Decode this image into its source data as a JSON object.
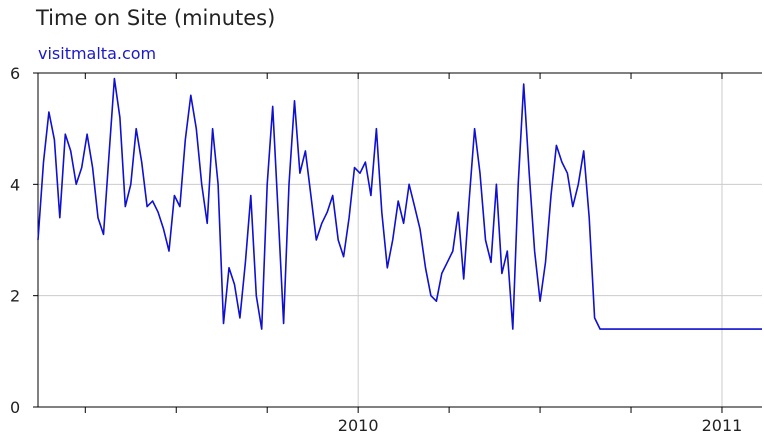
{
  "chart_data": {
    "type": "line",
    "title": "Time on Site (minutes)",
    "subtitle": "visitmalta.com",
    "xlabel": "",
    "ylabel": "",
    "ylim": [
      0,
      6
    ],
    "yticks": [
      "0",
      "2",
      "4",
      "6"
    ],
    "xticks": [
      {
        "label": "2010",
        "x": 2010.0
      },
      {
        "label": "2011",
        "x": 2011.0
      }
    ],
    "xlim": [
      2009.12,
      2011.11
    ],
    "grid": true,
    "line_color": "#1010d0",
    "series": [
      {
        "x": [
          2009.12,
          2009.135,
          2009.15,
          2009.165,
          2009.18,
          2009.195,
          2009.21,
          2009.225,
          2009.24,
          2009.255,
          2009.27,
          2009.285,
          2009.3,
          2009.315,
          2009.33,
          2009.345,
          2009.36,
          2009.375,
          2009.39,
          2009.405,
          2009.42,
          2009.435,
          2009.45,
          2009.465,
          2009.48,
          2009.495,
          2009.51,
          2009.525,
          2009.54,
          2009.555,
          2009.57,
          2009.585,
          2009.6,
          2009.615,
          2009.63,
          2009.645,
          2009.66,
          2009.675,
          2009.69,
          2009.705,
          2009.72,
          2009.735,
          2009.75,
          2009.765,
          2009.78,
          2009.795,
          2009.81,
          2009.825,
          2009.84,
          2009.855,
          2009.87,
          2009.885,
          2009.9,
          2009.915,
          2009.93,
          2009.945,
          2009.96,
          2009.975,
          2009.99,
          2010.005,
          2010.02,
          2010.035,
          2010.05,
          2010.065,
          2010.08,
          2010.095,
          2010.11,
          2010.125,
          2010.14,
          2010.155,
          2010.17,
          2010.185,
          2010.2,
          2010.215,
          2010.23,
          2010.245,
          2010.26,
          2010.275,
          2010.29,
          2010.305,
          2010.32,
          2010.335,
          2010.35,
          2010.365,
          2010.38,
          2010.395,
          2010.41,
          2010.425,
          2010.44,
          2010.455,
          2010.47,
          2010.485,
          2010.5,
          2010.515,
          2010.53,
          2010.545,
          2010.56,
          2010.575,
          2010.59,
          2010.605,
          2010.62,
          2010.635,
          2010.65,
          2010.665,
          2010.68,
          2010.695,
          2010.71,
          2010.725,
          2010.74,
          2010.755,
          2010.77,
          2010.785,
          2010.8,
          2010.815,
          2010.83,
          2010.845,
          2010.86,
          2010.875,
          2010.89,
          2010.905,
          2010.92,
          2010.935,
          2010.95,
          2010.965,
          2010.98,
          2010.995,
          2011.01,
          2011.025,
          2011.04,
          2011.055,
          2011.07,
          2011.085,
          2011.1,
          2011.11
        ],
        "values": [
          3.0,
          4.4,
          5.3,
          4.8,
          3.4,
          4.9,
          4.6,
          4.0,
          4.3,
          4.9,
          4.3,
          3.4,
          3.1,
          4.5,
          5.9,
          5.2,
          3.6,
          4.0,
          5.0,
          4.4,
          3.6,
          3.7,
          3.5,
          3.2,
          2.8,
          3.8,
          3.6,
          4.8,
          5.6,
          5.0,
          4.0,
          3.3,
          5.0,
          4.0,
          1.5,
          2.5,
          2.2,
          1.6,
          2.6,
          3.8,
          2.0,
          1.4,
          4.0,
          5.4,
          3.5,
          1.5,
          4.0,
          5.5,
          4.2,
          4.6,
          3.8,
          3.0,
          3.3,
          3.5,
          3.8,
          3.0,
          2.7,
          3.4,
          4.3,
          4.2,
          4.4,
          3.8,
          5.0,
          3.5,
          2.5,
          3.0,
          3.7,
          3.3,
          4.0,
          3.6,
          3.2,
          2.5,
          2.0,
          1.9,
          2.4,
          2.6,
          2.8,
          3.5,
          2.3,
          3.7,
          5.0,
          4.2,
          3.0,
          2.6,
          4.0,
          2.4,
          2.8,
          1.4,
          4.0,
          5.8,
          4.2,
          2.8,
          1.9,
          2.6,
          3.8,
          4.7,
          4.4,
          4.2,
          3.6,
          4.0,
          4.6,
          3.4,
          1.6,
          1.4,
          1.4,
          1.4,
          1.4,
          1.4,
          1.4,
          1.4,
          1.4,
          1.4,
          1.4,
          1.4,
          1.4,
          1.4,
          1.4,
          1.4,
          1.4,
          1.4,
          1.4,
          1.4,
          1.4,
          1.4,
          1.4,
          1.4,
          1.4,
          1.4,
          1.4,
          1.4,
          1.4,
          1.4,
          1.4,
          1.4
        ]
      }
    ]
  }
}
